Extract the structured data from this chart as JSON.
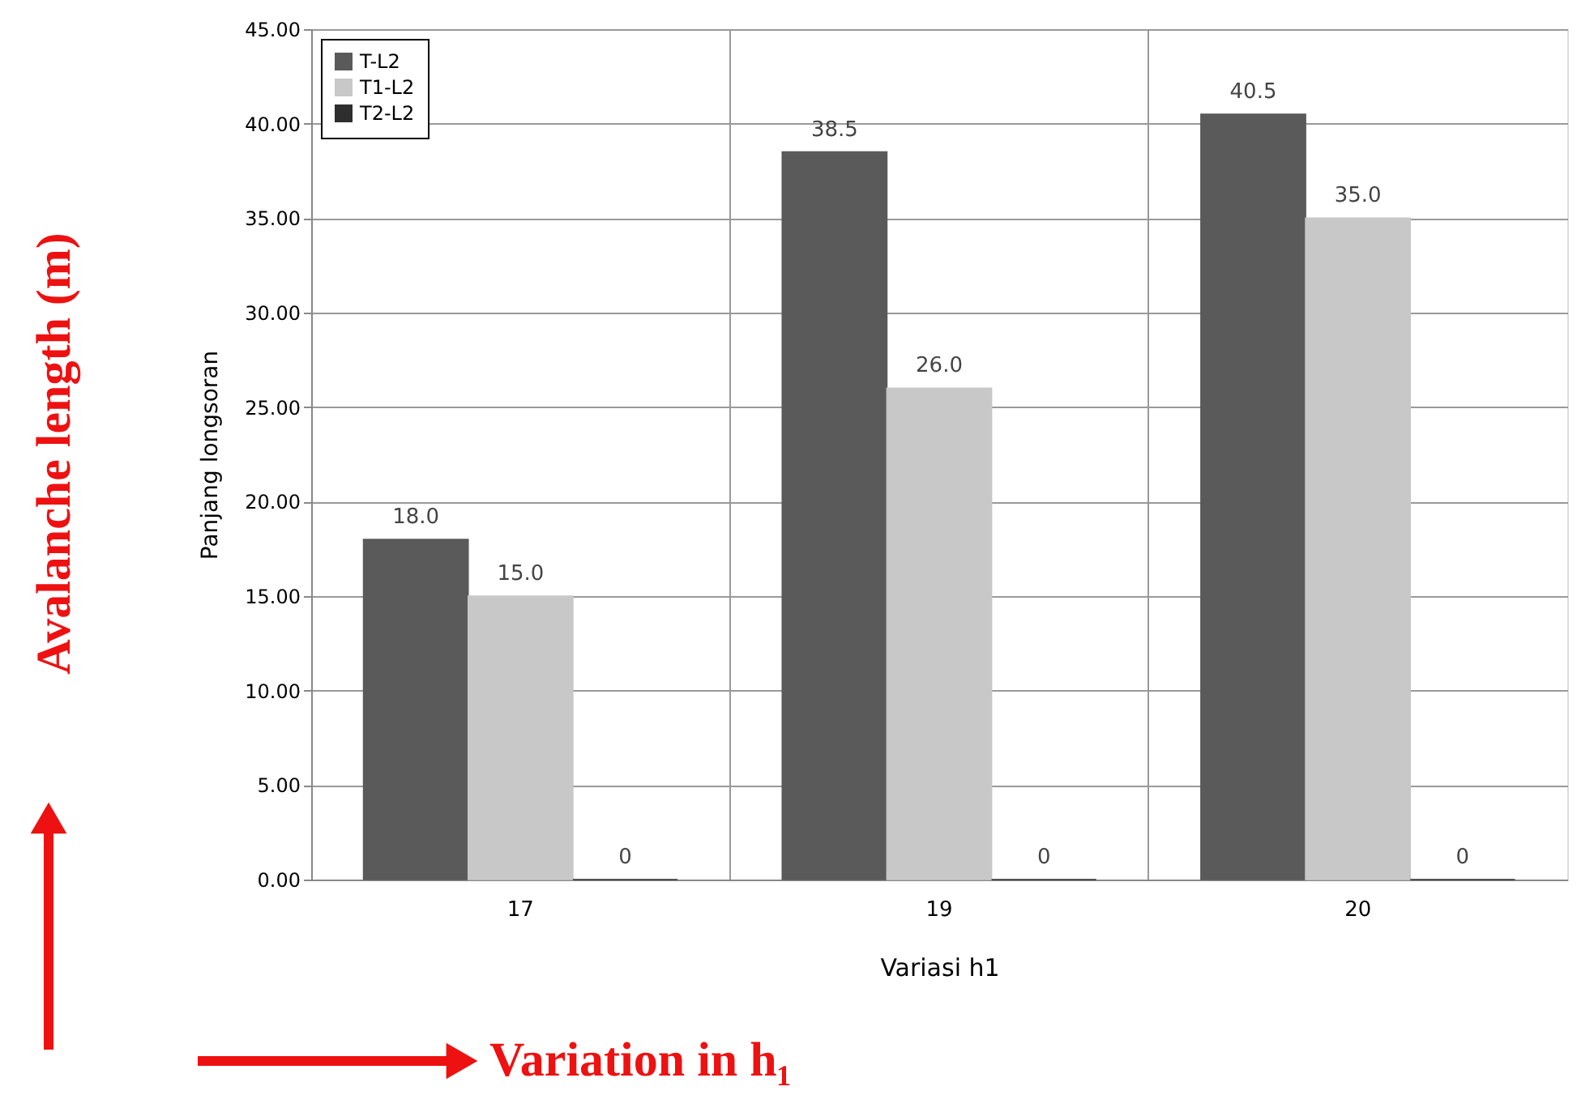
{
  "chart_data": {
    "type": "bar",
    "categories": [
      "17",
      "19",
      "20"
    ],
    "series": [
      {
        "name": "T-L2",
        "color": "#5a5a5a",
        "values": [
          18.0,
          38.5,
          40.5
        ],
        "value_labels": [
          "18.0",
          "38.5",
          "40.5"
        ]
      },
      {
        "name": "T1-L2",
        "color": "#c8c8c8",
        "values": [
          15.0,
          26.0,
          35.0
        ],
        "value_labels": [
          "15.0",
          "26.0",
          "35.0"
        ]
      },
      {
        "name": "T2-L2",
        "color": "#2e2e2e",
        "values": [
          0,
          0,
          0
        ],
        "value_labels": [
          "0",
          "0",
          "0"
        ]
      }
    ],
    "xlabel": "Variasi h1",
    "ylabel": "Panjang longsoran",
    "ylim": [
      0,
      45
    ],
    "yticks": [
      {
        "value": 0,
        "label": "0.00"
      },
      {
        "value": 5,
        "label": "5.00"
      },
      {
        "value": 10,
        "label": "10.00"
      },
      {
        "value": 15,
        "label": "15.00"
      },
      {
        "value": 20,
        "label": "20.00"
      },
      {
        "value": 25,
        "label": "25.00"
      },
      {
        "value": 30,
        "label": "30.00"
      },
      {
        "value": 35,
        "label": "35.00"
      },
      {
        "value": 40,
        "label": "40.00"
      },
      {
        "value": 45,
        "label": "45.00"
      }
    ],
    "grid": true,
    "legend": "top left",
    "annotations": [
      "Avalanche length (m)",
      "Variation in h₁"
    ]
  }
}
